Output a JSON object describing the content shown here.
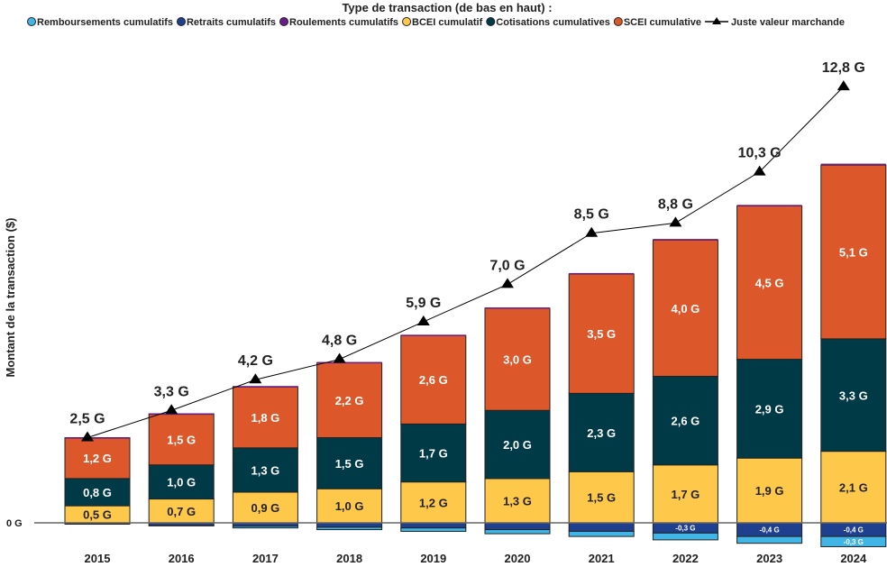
{
  "chart_data": {
    "type": "bar",
    "stacked": true,
    "legend_title": "Type de transaction (de bas en haut) :",
    "legend_position": "top",
    "ylabel": "Montant de la transaction ($)",
    "y_ticks": [
      "0 G"
    ],
    "grid": false,
    "categories": [
      "2015",
      "2016",
      "2017",
      "2018",
      "2019",
      "2020",
      "2021",
      "2022",
      "2023",
      "2024"
    ],
    "series": [
      {
        "name": "Remboursements cumulatifs",
        "color": "#41b6e6",
        "values": [
          -0.01,
          -0.01,
          -0.05,
          -0.07,
          -0.1,
          -0.12,
          -0.15,
          -0.2,
          -0.2,
          -0.3
        ],
        "labels": [
          "",
          "",
          "",
          "",
          "",
          "",
          "",
          "",
          "",
          "-0,3 G"
        ]
      },
      {
        "name": "Retraits cumulatifs",
        "color": "#1f3f8f",
        "values": [
          -0.03,
          -0.08,
          -0.1,
          -0.13,
          -0.15,
          -0.2,
          -0.25,
          -0.3,
          -0.4,
          -0.4
        ],
        "labels": [
          "",
          "",
          "",
          "",
          "",
          "",
          "",
          "-0,3 G",
          "-0,4 G",
          "-0,4 G"
        ]
      },
      {
        "name": "Roulements cumulatifs",
        "color": "#6a1b8a",
        "values": [
          0.01,
          0.01,
          0.01,
          0.02,
          0.02,
          0.02,
          0.03,
          0.03,
          0.03,
          0.04
        ],
        "labels": [
          "",
          "",
          "",
          "",
          "",
          "",
          "",
          "",
          "",
          ""
        ]
      },
      {
        "name": "BCEI cumulatif",
        "color": "#fec84a",
        "values": [
          0.5,
          0.7,
          0.9,
          1.0,
          1.2,
          1.3,
          1.5,
          1.7,
          1.9,
          2.1
        ],
        "labels": [
          "0,5 G",
          "0,7 G",
          "0,9 G",
          "1,0 G",
          "1,2 G",
          "1,3 G",
          "1,5 G",
          "1,7 G",
          "1,9 G",
          "2,1 G"
        ]
      },
      {
        "name": "Cotisations cumulatives",
        "color": "#003a47",
        "values": [
          0.8,
          1.0,
          1.3,
          1.5,
          1.7,
          2.0,
          2.3,
          2.6,
          2.9,
          3.3
        ],
        "labels": [
          "0,8 G",
          "1,0 G",
          "1,3 G",
          "1,5 G",
          "1,7 G",
          "2,0 G",
          "2,3 G",
          "2,6 G",
          "2,9 G",
          "3,3 G"
        ]
      },
      {
        "name": "SCEI cumulative",
        "color": "#dc582a",
        "values": [
          1.2,
          1.5,
          1.8,
          2.2,
          2.6,
          3.0,
          3.5,
          4.0,
          4.5,
          5.1
        ],
        "labels": [
          "1,2 G",
          "1,5 G",
          "1,8 G",
          "2,2 G",
          "2,6 G",
          "3,0 G",
          "3,5 G",
          "4,0 G",
          "4,5 G",
          "5,1 G"
        ]
      }
    ],
    "line": {
      "name": "Juste valeur marchande",
      "color": "#000000",
      "values": [
        2.5,
        3.3,
        4.2,
        4.8,
        5.9,
        7.0,
        8.5,
        8.8,
        10.3,
        12.8
      ],
      "labels": [
        "2,5 G",
        "3,3 G",
        "4,2 G",
        "4,8 G",
        "5,9 G",
        "7,0 G",
        "8,5 G",
        "8,8 G",
        "10,3 G",
        "12,8 G"
      ]
    }
  }
}
